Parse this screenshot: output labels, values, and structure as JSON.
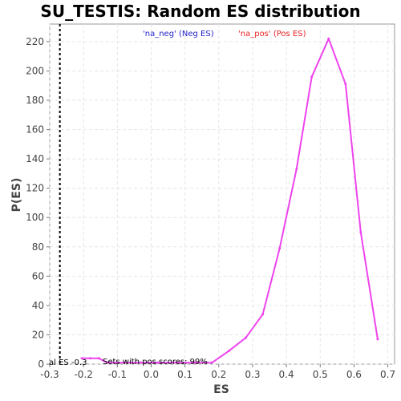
{
  "chart_data": {
    "type": "line",
    "title": "SU_TESTIS: Random ES distribution",
    "xlabel": "ES",
    "ylabel": "P(ES)",
    "xlim": [
      -0.3,
      0.72
    ],
    "ylim": [
      0,
      232
    ],
    "xticks": [
      -0.3,
      -0.2,
      -0.1,
      0,
      0.1,
      0.2,
      0.3,
      0.4,
      0.5,
      0.6,
      0.7
    ],
    "xtick_labels": [
      "-0.3",
      "-0.2",
      "-0.1",
      "0.0",
      "0.1",
      "0.2",
      "0.3",
      "0.4",
      "0.5",
      "0.6",
      "0.7"
    ],
    "yticks": [
      0,
      20,
      40,
      60,
      80,
      100,
      120,
      140,
      160,
      180,
      200,
      220
    ],
    "ytick_labels": [
      "0",
      "20",
      "40",
      "60",
      "80",
      "100",
      "120",
      "140",
      "160",
      "180",
      "200",
      "220"
    ],
    "grid": true,
    "legend": [
      {
        "label": "'na_neg' (Neg ES)",
        "color": "#2222cc"
      },
      {
        "label": "'na_pos' (Pos ES)",
        "color": "#ee2222"
      }
    ],
    "series": [
      {
        "color": "#ee44ee",
        "x": [
          -0.205,
          -0.18,
          -0.155,
          -0.13,
          -0.08,
          -0.03,
          0.02,
          0.08,
          0.13,
          0.18,
          0.23,
          0.28,
          0.33,
          0.38,
          0.43,
          0.475,
          0.525,
          0.575,
          0.62,
          0.67
        ],
        "y": [
          4,
          4,
          4,
          1,
          1,
          1,
          1,
          1,
          1,
          1,
          9,
          18,
          34,
          79,
          133,
          196,
          222,
          191,
          90,
          17
        ]
      }
    ],
    "vline": {
      "x": -0.27,
      "style": "dotted",
      "color": "#000000"
    },
    "annotations": {
      "left_text": "al ES -0.3",
      "bottom_text": "Sets with pos scores: 99%"
    }
  }
}
